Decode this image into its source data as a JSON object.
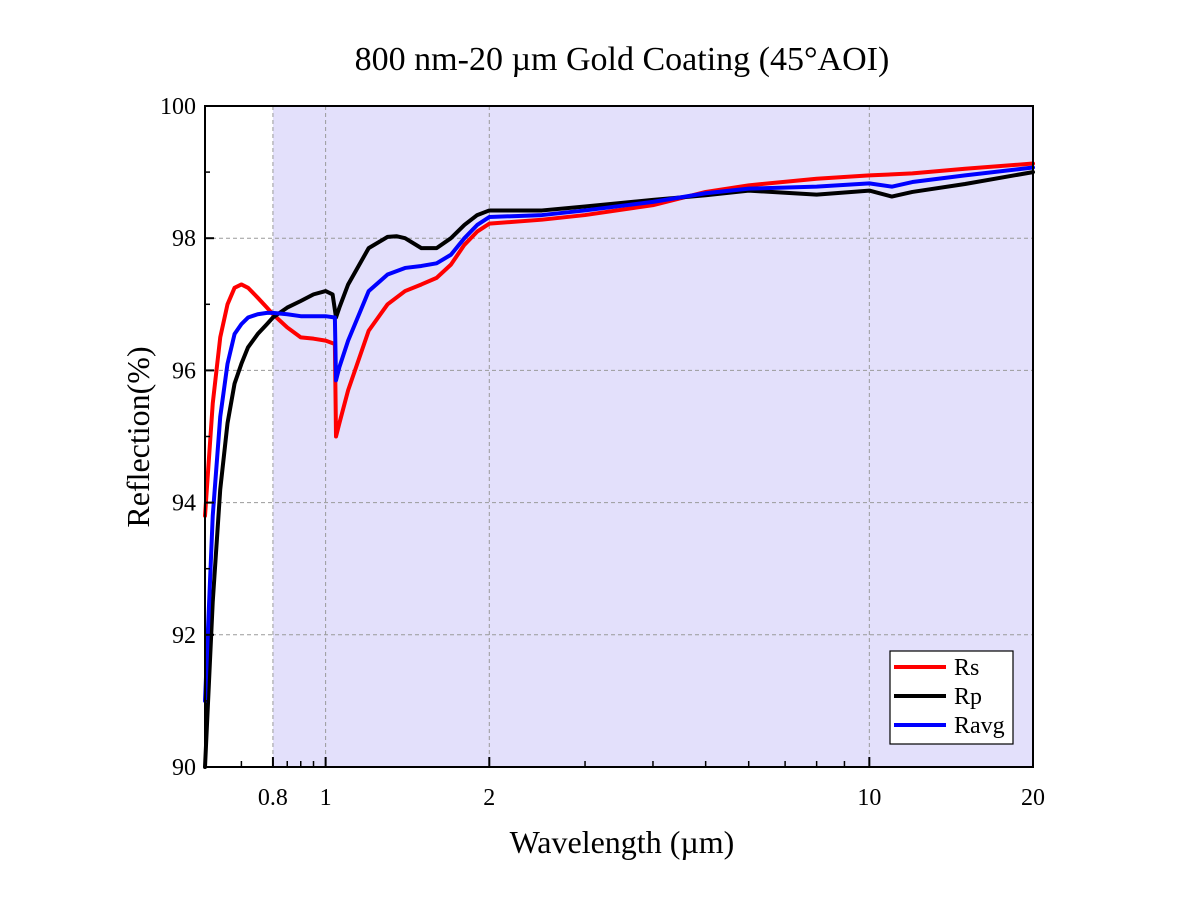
{
  "chart_data": {
    "type": "line",
    "title": "800 nm-20 µm Gold Coating (45°AOI)",
    "xlabel": "Wavelength (µm)",
    "ylabel": "Reflection(%)",
    "x_scale": "log",
    "xlim": [
      0.6,
      20
    ],
    "ylim": [
      90,
      100
    ],
    "x_ticks": [
      0.8,
      1,
      2,
      10,
      20
    ],
    "x_tick_labels": [
      "0.8",
      "1",
      "2",
      "10",
      "20"
    ],
    "y_ticks": [
      90,
      92,
      94,
      96,
      98,
      100
    ],
    "y_tick_labels": [
      "90",
      "92",
      "94",
      "96",
      "98",
      "100"
    ],
    "grid": true,
    "shaded_region": {
      "x_start": 0.8,
      "x_end": 20,
      "color": "#e3e0fb"
    },
    "legend_position": "bottom-right",
    "series": [
      {
        "name": "Rs",
        "color": "#ff0000",
        "x": [
          0.6,
          0.62,
          0.64,
          0.66,
          0.68,
          0.7,
          0.72,
          0.75,
          0.78,
          0.8,
          0.85,
          0.9,
          0.95,
          1.0,
          1.04,
          1.045,
          1.06,
          1.1,
          1.2,
          1.3,
          1.4,
          1.5,
          1.6,
          1.7,
          1.8,
          1.9,
          2.0,
          2.5,
          3.0,
          4.0,
          5.0,
          6.0,
          8.0,
          10.0,
          12.0,
          15.0,
          20.0
        ],
        "y": [
          93.8,
          95.5,
          96.5,
          97.0,
          97.25,
          97.3,
          97.25,
          97.1,
          96.95,
          96.85,
          96.65,
          96.5,
          96.48,
          96.45,
          96.4,
          95.0,
          95.2,
          95.7,
          96.6,
          97.0,
          97.2,
          97.3,
          97.4,
          97.6,
          97.9,
          98.1,
          98.22,
          98.28,
          98.35,
          98.5,
          98.7,
          98.8,
          98.9,
          98.95,
          98.98,
          99.05,
          99.13
        ]
      },
      {
        "name": "Rp",
        "color": "#000000",
        "x": [
          0.6,
          0.62,
          0.64,
          0.66,
          0.68,
          0.7,
          0.72,
          0.75,
          0.78,
          0.8,
          0.85,
          0.9,
          0.95,
          1.0,
          1.03,
          1.045,
          1.06,
          1.1,
          1.2,
          1.3,
          1.35,
          1.4,
          1.5,
          1.6,
          1.7,
          1.8,
          1.9,
          2.0,
          2.5,
          3.0,
          4.0,
          5.0,
          6.0,
          8.0,
          10.0,
          11.0,
          12.0,
          15.0,
          20.0
        ],
        "y": [
          90.0,
          92.5,
          94.2,
          95.2,
          95.8,
          96.1,
          96.35,
          96.55,
          96.7,
          96.8,
          96.95,
          97.05,
          97.15,
          97.2,
          97.15,
          96.8,
          96.95,
          97.3,
          97.85,
          98.02,
          98.03,
          98.0,
          97.85,
          97.85,
          98.0,
          98.2,
          98.35,
          98.42,
          98.42,
          98.48,
          98.58,
          98.65,
          98.72,
          98.66,
          98.72,
          98.63,
          98.7,
          98.82,
          99.0
        ]
      },
      {
        "name": "Ravg",
        "color": "#0000ff",
        "x": [
          0.6,
          0.62,
          0.64,
          0.66,
          0.68,
          0.7,
          0.72,
          0.75,
          0.78,
          0.8,
          0.85,
          0.9,
          0.95,
          1.0,
          1.04,
          1.045,
          1.06,
          1.1,
          1.2,
          1.3,
          1.4,
          1.5,
          1.6,
          1.7,
          1.8,
          1.9,
          2.0,
          2.5,
          3.0,
          4.0,
          5.0,
          6.0,
          8.0,
          10.0,
          11.0,
          12.0,
          15.0,
          20.0
        ],
        "y": [
          91.0,
          93.8,
          95.3,
          96.1,
          96.55,
          96.7,
          96.8,
          96.85,
          96.87,
          96.87,
          96.85,
          96.82,
          96.82,
          96.82,
          96.8,
          95.85,
          96.05,
          96.45,
          97.2,
          97.45,
          97.55,
          97.58,
          97.62,
          97.75,
          98.0,
          98.2,
          98.32,
          98.35,
          98.42,
          98.55,
          98.68,
          98.75,
          98.78,
          98.83,
          98.78,
          98.85,
          98.95,
          99.07
        ]
      }
    ]
  }
}
